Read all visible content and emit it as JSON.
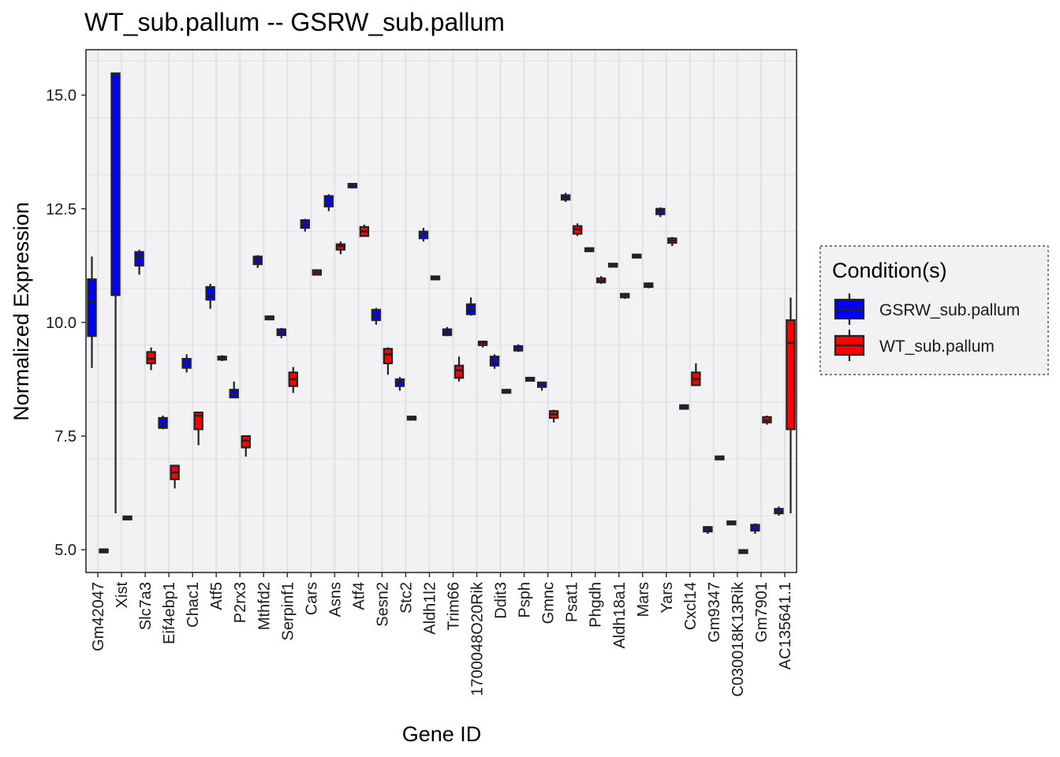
{
  "chart_data": {
    "type": "box",
    "title": "WT_sub.pallum -- GSRW_sub.pallum",
    "xlabel": "Gene ID",
    "ylabel": "Normalized Expression",
    "ylim": [
      4.5,
      16.0
    ],
    "yticks": [
      5.0,
      7.5,
      10.0,
      12.5,
      15.0
    ],
    "ytick_labels": [
      "5.0",
      "7.5",
      "10.0",
      "12.5",
      "15.0"
    ],
    "grid": true,
    "legend_position": "right",
    "legend_title": "Condition(s)",
    "series": [
      {
        "name": "GSRW_sub.pallum",
        "color": "#0000ff"
      },
      {
        "name": "WT_sub.pallum",
        "color": "#ff0000"
      }
    ],
    "categories": [
      "Gm42047",
      "Xist",
      "Slc7a3",
      "Eif4ebp1",
      "Chac1",
      "Atf5",
      "P2rx3",
      "Mthfd2",
      "Serpinf1",
      "Cars",
      "Asns",
      "Atf4",
      "Sesn2",
      "Stc2",
      "Aldh1l2",
      "Trim66",
      "1700048O20Rik",
      "Ddit3",
      "Psph",
      "Gmnc",
      "Psat1",
      "Phgdh",
      "Aldh18a1",
      "Mars",
      "Yars",
      "Cxcl14",
      "Gm9347",
      "C030018K13Rik",
      "Gm7901",
      "AC135641.1"
    ],
    "boxes": [
      {
        "category": "Gm42047",
        "series": "GSRW_sub.pallum",
        "lo": 9.0,
        "q1": 9.7,
        "med": 10.45,
        "q3": 10.95,
        "hi": 11.45
      },
      {
        "category": "Gm42047",
        "series": "WT_sub.pallum",
        "lo": 4.95,
        "q1": 4.95,
        "med": 4.97,
        "q3": 5.0,
        "hi": 5.0
      },
      {
        "category": "Xist",
        "series": "GSRW_sub.pallum",
        "lo": 5.8,
        "q1": 10.6,
        "med": 15.45,
        "q3": 15.48,
        "hi": 15.5
      },
      {
        "category": "Xist",
        "series": "WT_sub.pallum",
        "lo": 5.67,
        "q1": 5.67,
        "med": 5.7,
        "q3": 5.73,
        "hi": 5.73
      },
      {
        "category": "Slc7a3",
        "series": "GSRW_sub.pallum",
        "lo": 11.05,
        "q1": 11.25,
        "med": 11.45,
        "q3": 11.55,
        "hi": 11.6
      },
      {
        "category": "Slc7a3",
        "series": "WT_sub.pallum",
        "lo": 8.95,
        "q1": 9.1,
        "med": 9.2,
        "q3": 9.35,
        "hi": 9.45
      },
      {
        "category": "Eif4ebp1",
        "series": "GSRW_sub.pallum",
        "lo": 7.65,
        "q1": 7.68,
        "med": 7.75,
        "q3": 7.9,
        "hi": 7.95
      },
      {
        "category": "Eif4ebp1",
        "series": "WT_sub.pallum",
        "lo": 6.35,
        "q1": 6.55,
        "med": 6.7,
        "q3": 6.85,
        "hi": 6.85
      },
      {
        "category": "Chac1",
        "series": "GSRW_sub.pallum",
        "lo": 8.9,
        "q1": 9.0,
        "med": 9.1,
        "q3": 9.2,
        "hi": 9.3
      },
      {
        "category": "Chac1",
        "series": "WT_sub.pallum",
        "lo": 7.3,
        "q1": 7.65,
        "med": 7.95,
        "q3": 8.02,
        "hi": 8.02
      },
      {
        "category": "Atf5",
        "series": "GSRW_sub.pallum",
        "lo": 10.3,
        "q1": 10.5,
        "med": 10.6,
        "q3": 10.78,
        "hi": 10.85
      },
      {
        "category": "Atf5",
        "series": "WT_sub.pallum",
        "lo": 9.15,
        "q1": 9.18,
        "med": 9.22,
        "q3": 9.25,
        "hi": 9.28
      },
      {
        "category": "P2rx3",
        "series": "GSRW_sub.pallum",
        "lo": 8.35,
        "q1": 8.35,
        "med": 8.42,
        "q3": 8.52,
        "hi": 8.7
      },
      {
        "category": "P2rx3",
        "series": "WT_sub.pallum",
        "lo": 7.05,
        "q1": 7.25,
        "med": 7.4,
        "q3": 7.5,
        "hi": 7.5
      },
      {
        "category": "Mthfd2",
        "series": "GSRW_sub.pallum",
        "lo": 11.2,
        "q1": 11.28,
        "med": 11.38,
        "q3": 11.45,
        "hi": 11.48
      },
      {
        "category": "Mthfd2",
        "series": "WT_sub.pallum",
        "lo": 10.07,
        "q1": 10.08,
        "med": 10.1,
        "q3": 10.12,
        "hi": 10.13
      },
      {
        "category": "Serpinf1",
        "series": "GSRW_sub.pallum",
        "lo": 9.65,
        "q1": 9.72,
        "med": 9.8,
        "q3": 9.85,
        "hi": 9.88
      },
      {
        "category": "Serpinf1",
        "series": "WT_sub.pallum",
        "lo": 8.45,
        "q1": 8.6,
        "med": 8.75,
        "q3": 8.9,
        "hi": 9.02
      },
      {
        "category": "Cars",
        "series": "GSRW_sub.pallum",
        "lo": 12.0,
        "q1": 12.08,
        "med": 12.18,
        "q3": 12.25,
        "hi": 12.28
      },
      {
        "category": "Cars",
        "series": "WT_sub.pallum",
        "lo": 11.03,
        "q1": 11.05,
        "med": 11.1,
        "q3": 11.15,
        "hi": 11.17
      },
      {
        "category": "Asns",
        "series": "GSRW_sub.pallum",
        "lo": 12.45,
        "q1": 12.55,
        "med": 12.65,
        "q3": 12.78,
        "hi": 12.82
      },
      {
        "category": "Asns",
        "series": "WT_sub.pallum",
        "lo": 11.5,
        "q1": 11.6,
        "med": 11.68,
        "q3": 11.72,
        "hi": 11.78
      },
      {
        "category": "Atf4",
        "series": "GSRW_sub.pallum",
        "lo": 12.95,
        "q1": 12.97,
        "med": 13.02,
        "q3": 13.05,
        "hi": 13.07
      },
      {
        "category": "Atf4",
        "series": "WT_sub.pallum",
        "lo": 11.88,
        "q1": 11.9,
        "med": 12.0,
        "q3": 12.1,
        "hi": 12.15
      },
      {
        "category": "Sesn2",
        "series": "GSRW_sub.pallum",
        "lo": 9.95,
        "q1": 10.05,
        "med": 10.15,
        "q3": 10.28,
        "hi": 10.32
      },
      {
        "category": "Sesn2",
        "series": "WT_sub.pallum",
        "lo": 8.85,
        "q1": 9.1,
        "med": 9.3,
        "q3": 9.42,
        "hi": 9.45
      },
      {
        "category": "Stc2",
        "series": "GSRW_sub.pallum",
        "lo": 8.5,
        "q1": 8.6,
        "med": 8.7,
        "q3": 8.75,
        "hi": 8.8
      },
      {
        "category": "Stc2",
        "series": "WT_sub.pallum",
        "lo": 7.86,
        "q1": 7.87,
        "med": 7.9,
        "q3": 7.92,
        "hi": 7.93
      },
      {
        "category": "Aldh1l2",
        "series": "GSRW_sub.pallum",
        "lo": 11.78,
        "q1": 11.85,
        "med": 11.95,
        "q3": 12.0,
        "hi": 12.08
      },
      {
        "category": "Aldh1l2",
        "series": "WT_sub.pallum",
        "lo": 10.95,
        "q1": 10.96,
        "med": 10.98,
        "q3": 11.0,
        "hi": 11.02
      },
      {
        "category": "Trim66",
        "series": "GSRW_sub.pallum",
        "lo": 9.7,
        "q1": 9.72,
        "med": 9.78,
        "q3": 9.85,
        "hi": 9.9
      },
      {
        "category": "Trim66",
        "series": "WT_sub.pallum",
        "lo": 8.7,
        "q1": 8.78,
        "med": 8.95,
        "q3": 9.05,
        "hi": 9.25
      },
      {
        "category": "1700048O20Rik",
        "series": "GSRW_sub.pallum",
        "lo": 10.15,
        "q1": 10.18,
        "med": 10.3,
        "q3": 10.4,
        "hi": 10.55
      },
      {
        "category": "1700048O20Rik",
        "series": "WT_sub.pallum",
        "lo": 9.45,
        "q1": 9.5,
        "med": 9.55,
        "q3": 9.58,
        "hi": 9.6
      },
      {
        "category": "Ddit3",
        "series": "GSRW_sub.pallum",
        "lo": 8.98,
        "q1": 9.05,
        "med": 9.15,
        "q3": 9.25,
        "hi": 9.3
      },
      {
        "category": "Ddit3",
        "series": "WT_sub.pallum",
        "lo": 8.45,
        "q1": 8.47,
        "med": 8.49,
        "q3": 8.5,
        "hi": 8.52
      },
      {
        "category": "Psph",
        "series": "GSRW_sub.pallum",
        "lo": 9.35,
        "q1": 9.38,
        "med": 9.42,
        "q3": 9.48,
        "hi": 9.52
      },
      {
        "category": "Psph",
        "series": "WT_sub.pallum",
        "lo": 8.72,
        "q1": 8.73,
        "med": 8.75,
        "q3": 8.77,
        "hi": 8.78
      },
      {
        "category": "Gmnc",
        "series": "GSRW_sub.pallum",
        "lo": 8.5,
        "q1": 8.58,
        "med": 8.62,
        "q3": 8.68,
        "hi": 8.7
      },
      {
        "category": "Gmnc",
        "series": "WT_sub.pallum",
        "lo": 7.8,
        "q1": 7.9,
        "med": 7.98,
        "q3": 8.05,
        "hi": 8.08
      },
      {
        "category": "Psat1",
        "series": "GSRW_sub.pallum",
        "lo": 12.65,
        "q1": 12.7,
        "med": 12.75,
        "q3": 12.8,
        "hi": 12.85
      },
      {
        "category": "Psat1",
        "series": "WT_sub.pallum",
        "lo": 11.9,
        "q1": 11.95,
        "med": 12.05,
        "q3": 12.12,
        "hi": 12.18
      },
      {
        "category": "Phgdh",
        "series": "GSRW_sub.pallum",
        "lo": 11.57,
        "q1": 11.58,
        "med": 11.6,
        "q3": 11.62,
        "hi": 11.63
      },
      {
        "category": "Phgdh",
        "series": "WT_sub.pallum",
        "lo": 10.85,
        "q1": 10.88,
        "med": 10.92,
        "q3": 10.97,
        "hi": 11.02
      },
      {
        "category": "Aldh18a1",
        "series": "GSRW_sub.pallum",
        "lo": 11.24,
        "q1": 11.25,
        "med": 11.26,
        "q3": 11.27,
        "hi": 11.28
      },
      {
        "category": "Aldh18a1",
        "series": "WT_sub.pallum",
        "lo": 10.52,
        "q1": 10.55,
        "med": 10.6,
        "q3": 10.63,
        "hi": 10.65
      },
      {
        "category": "Mars",
        "series": "GSRW_sub.pallum",
        "lo": 11.44,
        "q1": 11.45,
        "med": 11.46,
        "q3": 11.47,
        "hi": 11.48
      },
      {
        "category": "Mars",
        "series": "WT_sub.pallum",
        "lo": 10.75,
        "q1": 10.78,
        "med": 10.82,
        "q3": 10.86,
        "hi": 10.88
      },
      {
        "category": "Yars",
        "series": "GSRW_sub.pallum",
        "lo": 12.32,
        "q1": 12.38,
        "med": 12.45,
        "q3": 12.5,
        "hi": 12.53
      },
      {
        "category": "Yars",
        "series": "WT_sub.pallum",
        "lo": 11.68,
        "q1": 11.75,
        "med": 11.8,
        "q3": 11.85,
        "hi": 11.88
      },
      {
        "category": "Cxcl14",
        "series": "GSRW_sub.pallum",
        "lo": 8.08,
        "q1": 8.1,
        "med": 8.15,
        "q3": 8.18,
        "hi": 8.2
      },
      {
        "category": "Cxcl14",
        "series": "WT_sub.pallum",
        "lo": 8.6,
        "q1": 8.62,
        "med": 8.75,
        "q3": 8.9,
        "hi": 9.1
      },
      {
        "category": "Gm9347",
        "series": "GSRW_sub.pallum",
        "lo": 5.35,
        "q1": 5.4,
        "med": 5.45,
        "q3": 5.5,
        "hi": 5.52
      },
      {
        "category": "Gm9347",
        "series": "WT_sub.pallum",
        "lo": 6.98,
        "q1": 6.99,
        "med": 7.02,
        "q3": 7.05,
        "hi": 7.06
      },
      {
        "category": "C030018K13Rik",
        "series": "GSRW_sub.pallum",
        "lo": 5.56,
        "q1": 5.57,
        "med": 5.59,
        "q3": 5.61,
        "hi": 5.62
      },
      {
        "category": "C030018K13Rik",
        "series": "WT_sub.pallum",
        "lo": 4.94,
        "q1": 4.94,
        "med": 4.96,
        "q3": 4.98,
        "hi": 4.98
      },
      {
        "category": "Gm7901",
        "series": "GSRW_sub.pallum",
        "lo": 5.35,
        "q1": 5.42,
        "med": 5.5,
        "q3": 5.55,
        "hi": 5.58
      },
      {
        "category": "Gm7901",
        "series": "WT_sub.pallum",
        "lo": 7.75,
        "q1": 7.8,
        "med": 7.85,
        "q3": 7.92,
        "hi": 7.95
      },
      {
        "category": "AC135641.1",
        "series": "GSRW_sub.pallum",
        "lo": 5.75,
        "q1": 5.8,
        "med": 5.85,
        "q3": 5.9,
        "hi": 5.95
      },
      {
        "category": "AC135641.1",
        "series": "WT_sub.pallum",
        "lo": 5.8,
        "q1": 7.65,
        "med": 9.55,
        "q3": 10.05,
        "hi": 10.55
      }
    ]
  }
}
